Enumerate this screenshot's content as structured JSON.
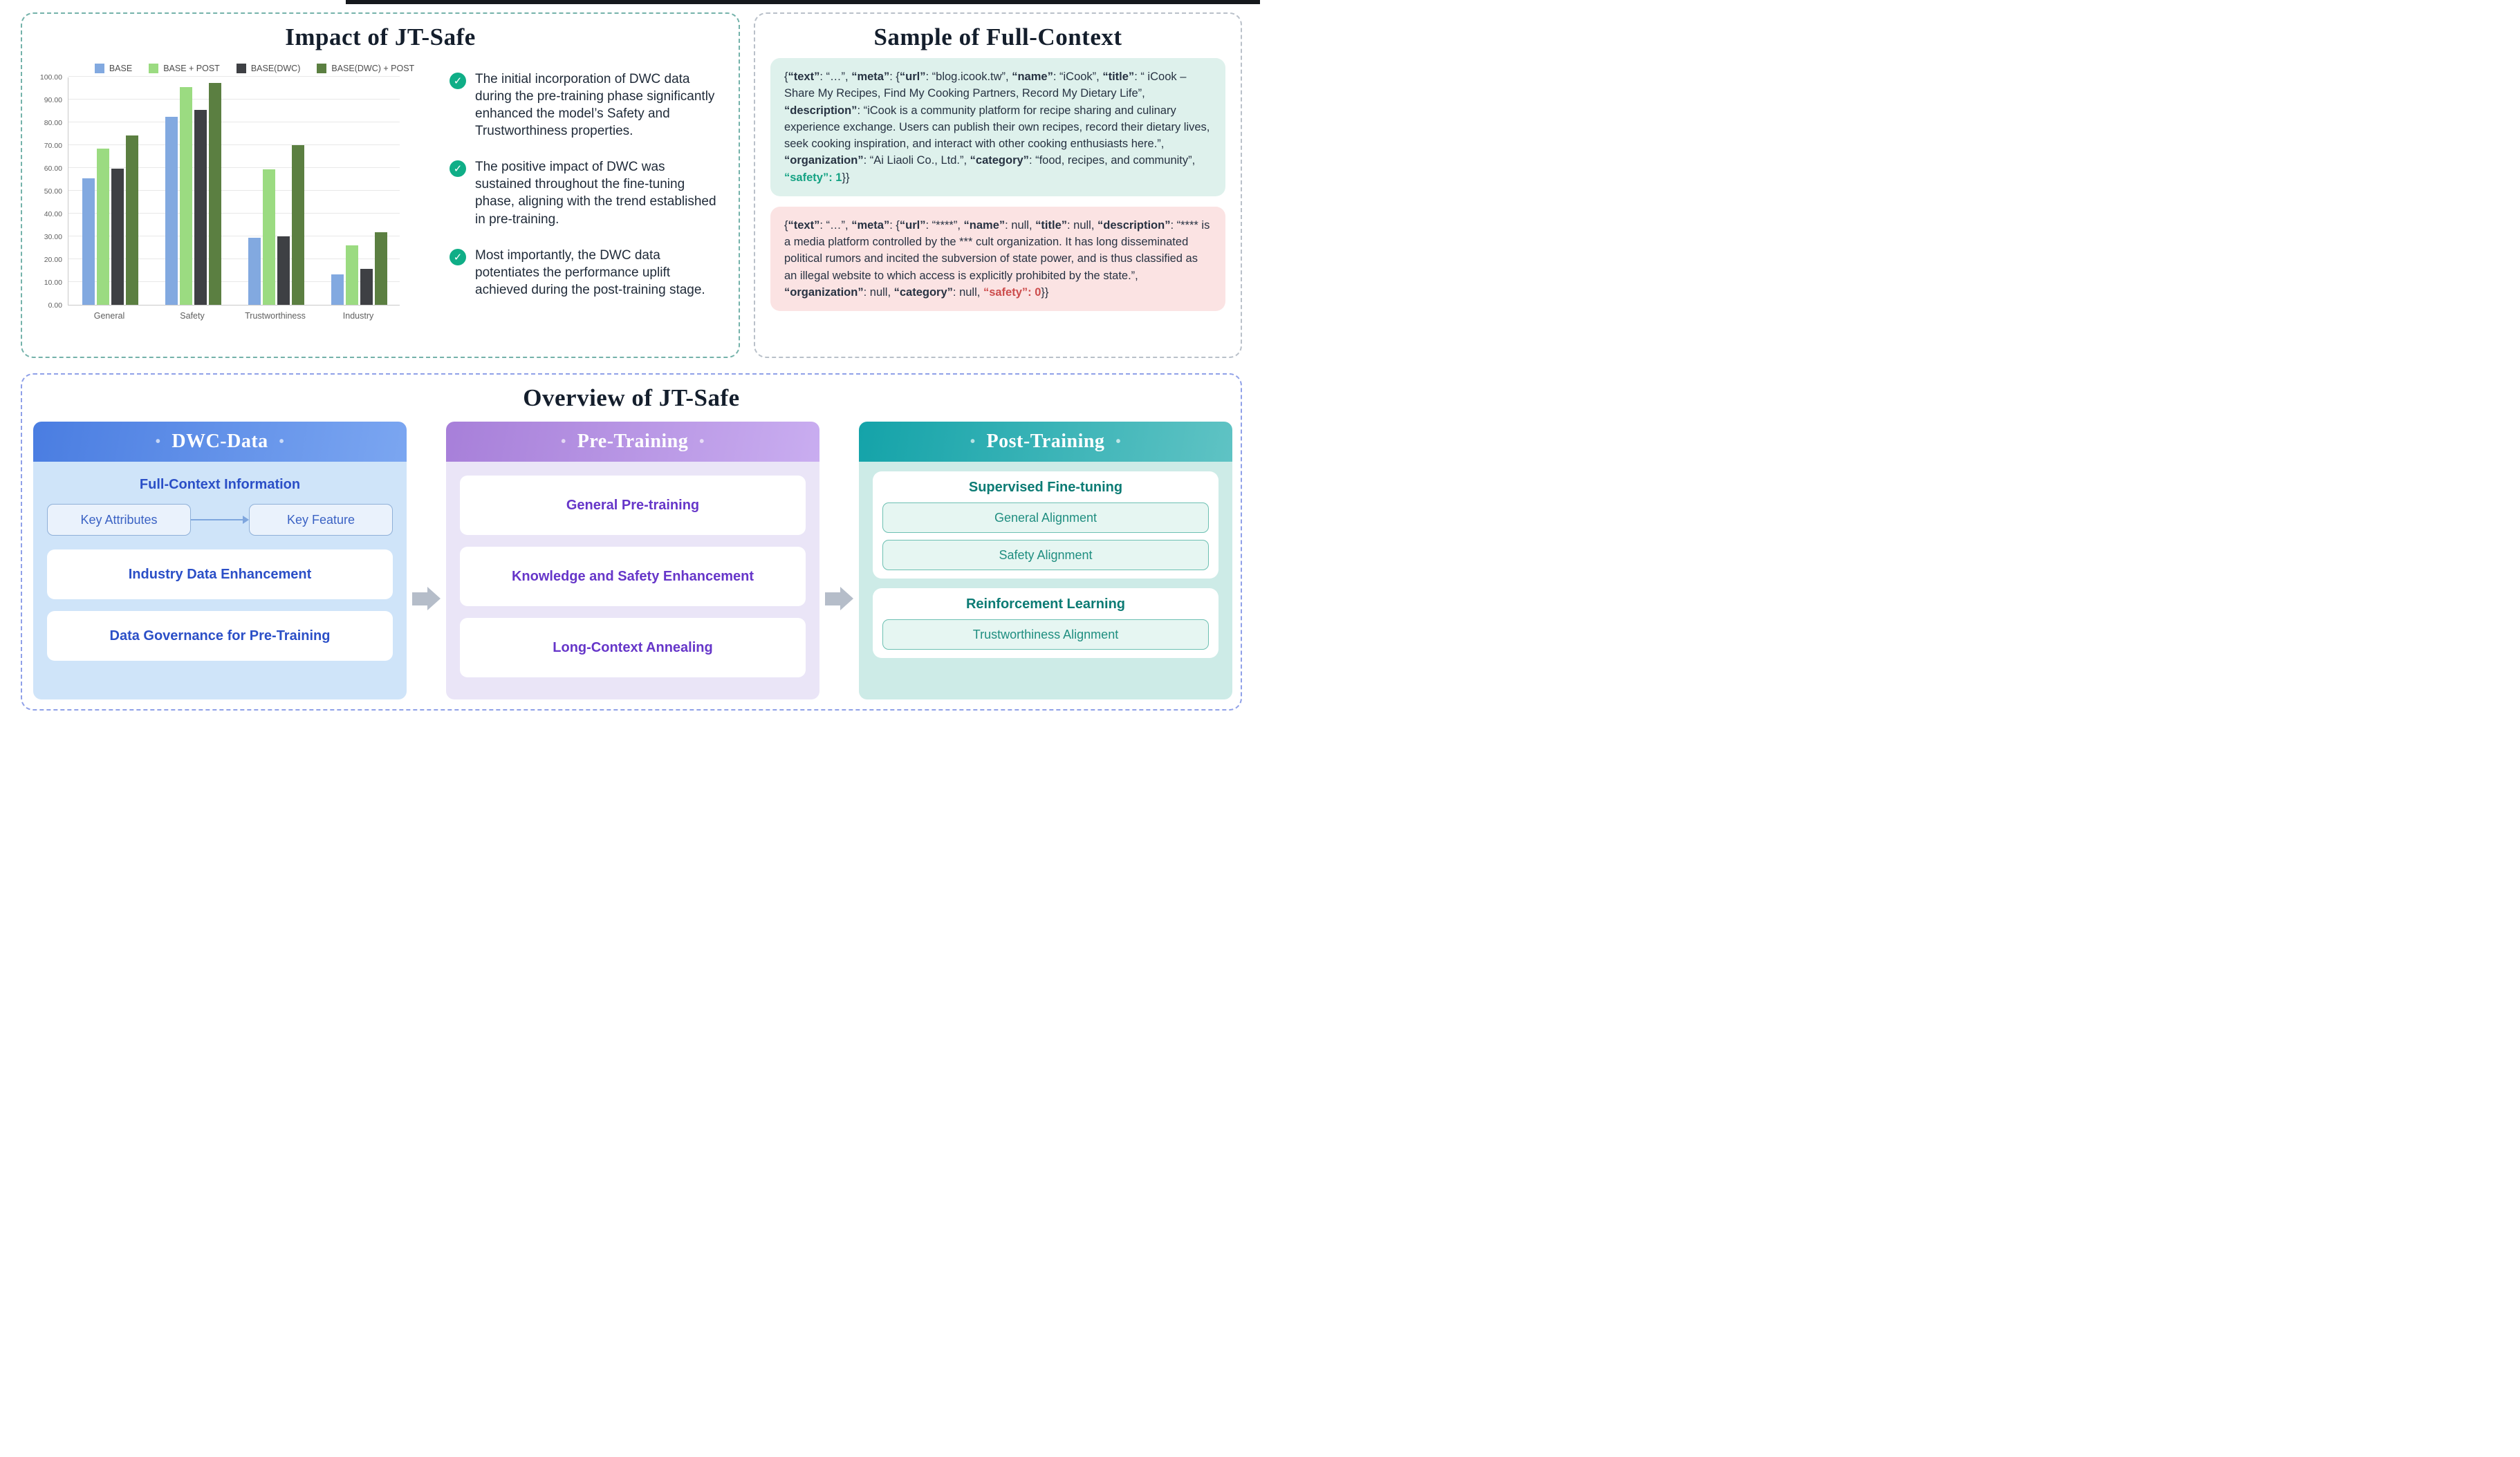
{
  "impact_panel": {
    "title": "Impact of JT-Safe",
    "check_glyph": "✓",
    "bullets": [
      "The initial incorporation of DWC data during the pre-training phase significantly enhanced the model’s Safety and Trustworthiness properties.",
      "The positive impact of DWC was sustained throughout the fine-tuning phase, aligning with the trend established in pre-training.",
      "Most importantly, the DWC data potentiates the performance uplift achieved during the post-training stage."
    ]
  },
  "chart_data": {
    "type": "bar",
    "title": "",
    "categories": [
      "General",
      "Safety",
      "Trustworthiness",
      "Industry"
    ],
    "series": [
      {
        "name": "BASE",
        "color": "#82a9e0",
        "values": [
          55.5,
          82.4,
          29.4,
          13.4
        ]
      },
      {
        "name": "BASE + POST",
        "color": "#9bdb81",
        "values": [
          68.5,
          95.4,
          59.3,
          26.2
        ]
      },
      {
        "name": "BASE(DWC)",
        "color": "#3e4044",
        "values": [
          59.8,
          85.6,
          30.0,
          15.9
        ]
      },
      {
        "name": "BASE(DWC) + POST",
        "color": "#5b7f41",
        "values": [
          74.3,
          97.2,
          69.9,
          31.7
        ]
      }
    ],
    "ylim": [
      0,
      100
    ],
    "ytick_step": 10,
    "ytick_decimals": 2,
    "grid": true,
    "legend_position": "top"
  },
  "sample_panel": {
    "title": "Sample of Full-Context",
    "positive_segments": [
      {
        "t": "{"
      },
      {
        "t": "“text”",
        "s": "b"
      },
      {
        "t": ": “…”, "
      },
      {
        "t": "“meta”",
        "s": "b"
      },
      {
        "t": ": {"
      },
      {
        "t": "“url”",
        "s": "b"
      },
      {
        "t": ": “blog.icook.tw”, "
      },
      {
        "t": "“name”",
        "s": "b"
      },
      {
        "t": ": “iCook”, "
      },
      {
        "t": "“title”",
        "s": "b"
      },
      {
        "t": ": “ iCook – Share My Recipes, Find My Cooking Partners, Record My Dietary Life”, "
      },
      {
        "t": "“description”",
        "s": "b"
      },
      {
        "t": ": “iCook is a community platform for recipe sharing and culinary experience exchange. Users can publish their own recipes, record their dietary lives, seek cooking inspiration, and interact with other cooking enthusiasts here.”, "
      },
      {
        "t": "“organization”",
        "s": "b"
      },
      {
        "t": ": “Ai Liaoli Co., Ltd.”, "
      },
      {
        "t": "“category”",
        "s": "b"
      },
      {
        "t": ": “food, recipes, and community”, "
      },
      {
        "t": "“safety”: 1",
        "s": "g"
      },
      {
        "t": "}}"
      }
    ],
    "negative_segments": [
      {
        "t": "{"
      },
      {
        "t": "“text”",
        "s": "b"
      },
      {
        "t": ": “…”, "
      },
      {
        "t": "“meta”",
        "s": "b"
      },
      {
        "t": ": {"
      },
      {
        "t": "“url”",
        "s": "b"
      },
      {
        "t": ": “****”, "
      },
      {
        "t": "“name”",
        "s": "b"
      },
      {
        "t": ": null, "
      },
      {
        "t": "“title”",
        "s": "b"
      },
      {
        "t": ": null, "
      },
      {
        "t": "“description”",
        "s": "b"
      },
      {
        "t": ": “**** is a media platform controlled by the *** cult organization. It has long disseminated political rumors and incited the subversion of state power, and is thus classified as an illegal website to which access is explicitly prohibited by the state.”, "
      },
      {
        "t": "“organization”",
        "s": "b"
      },
      {
        "t": ": null, "
      },
      {
        "t": "“category”",
        "s": "b"
      },
      {
        "t": ": null, "
      },
      {
        "t": "“safety”: 0",
        "s": "r"
      },
      {
        "t": "}}"
      }
    ]
  },
  "overview_panel": {
    "title": "Overview of JT-Safe",
    "dot": "•",
    "columns": [
      {
        "header": "DWC-Data",
        "section_title": "Full-Context Information",
        "attr_box": "Key Attributes",
        "feature_box": "Key Feature",
        "boxes": [
          "Industry Data Enhancement",
          "Data Governance for Pre-Training"
        ]
      },
      {
        "header": "Pre-Training",
        "boxes": [
          "General Pre-training",
          "Knowledge and Safety Enhancement",
          "Long-Context Annealing"
        ]
      },
      {
        "header": "Post-Training",
        "groups": [
          {
            "title": "Supervised Fine-tuning",
            "items": [
              "General Alignment",
              "Safety Alignment"
            ]
          },
          {
            "title": "Reinforcement Learning",
            "items": [
              "Trustworthiness Alignment"
            ]
          }
        ]
      }
    ],
    "colors": {
      "accent_blue": "#2b4fc7",
      "accent_purple": "#6636c9",
      "accent_teal": "#0c7b74",
      "safety_green": "#13a283",
      "safety_red": "#cc4b4b"
    }
  }
}
